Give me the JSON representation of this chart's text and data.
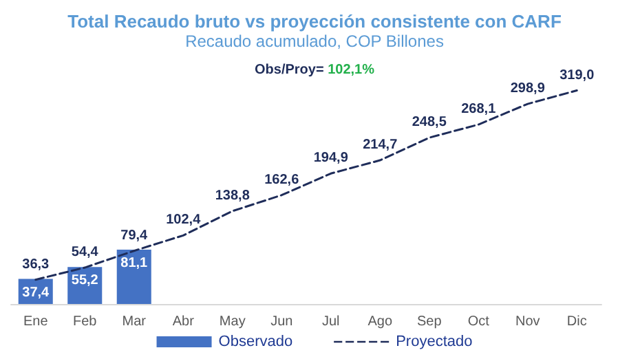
{
  "chart_data": {
    "type": "bar",
    "title": "Total Recaudo bruto vs proyección consistente con CARF",
    "subtitle": "Recaudo acumulado, COP Billones",
    "annotations": [
      "Obs/Proy= 102,1%"
    ],
    "categories": [
      "Ene",
      "Feb",
      "Mar",
      "Abr",
      "May",
      "Jun",
      "Jul",
      "Ago",
      "Sep",
      "Oct",
      "Nov",
      "Dic"
    ],
    "series": [
      {
        "name": "Observado",
        "color": "#4472c4",
        "values": [
          37.4,
          55.2,
          81.1,
          null,
          null,
          null,
          null,
          null,
          null,
          null,
          null,
          null
        ],
        "value_labels": [
          "37,4",
          "55,2",
          "81,1",
          null,
          null,
          null,
          null,
          null,
          null,
          null,
          null,
          null
        ]
      },
      {
        "name": "Proyectado",
        "type": "line",
        "color": "#1f2d5a",
        "line_style": "dashed",
        "values": [
          36.3,
          54.4,
          79.4,
          102.4,
          138.8,
          162.6,
          194.9,
          214.7,
          248.5,
          268.1,
          298.9,
          319.0
        ],
        "value_labels": [
          "36,3",
          "54,4",
          "79,4",
          "102,4",
          "138,8",
          "162,6",
          "194,9",
          "214,7",
          "248,5",
          "268,1",
          "298,9",
          "319,0"
        ]
      }
    ],
    "legend": "bottom",
    "marker": "none"
  }
}
